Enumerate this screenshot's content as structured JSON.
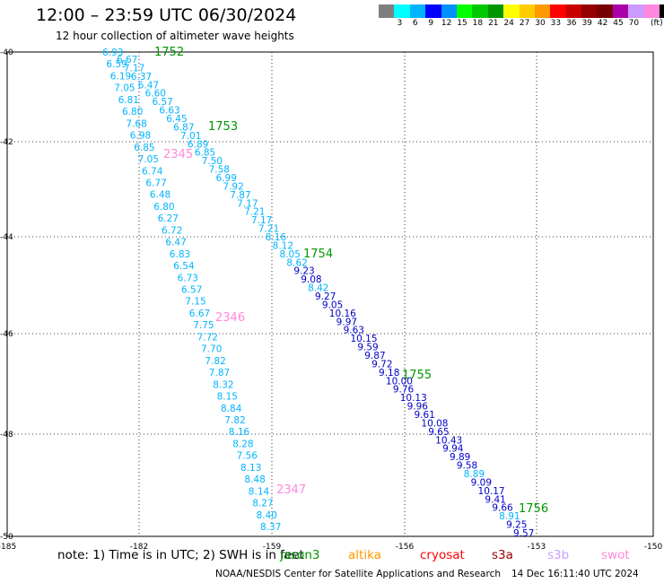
{
  "header": {
    "title": "12:00 – 23:59 UTC 06/30/2024",
    "subtitle": "12 hour collection of altimeter wave heights"
  },
  "colorbar": {
    "unit": "(ft)",
    "colors": [
      "#7f7f7f",
      "#00ffff",
      "#00b4ff",
      "#0000ff",
      "#0090ff",
      "#00ff00",
      "#00c800",
      "#009600",
      "#ffff00",
      "#ffcc00",
      "#ff9900",
      "#ff0000",
      "#c80000",
      "#960000",
      "#780000",
      "#aa00aa",
      "#cc99ff",
      "#ff88dd",
      "#000000"
    ],
    "labels": [
      "3",
      "6",
      "9",
      "12",
      "15",
      "18",
      "21",
      "24",
      "27",
      "30",
      "33",
      "36",
      "39",
      "42",
      "45",
      "70"
    ]
  },
  "axes": {
    "x_ticks": [
      "-185",
      "-182",
      "-159",
      "-156",
      "-153",
      "-150"
    ],
    "y_ticks": [
      "-40",
      "-42",
      "-44",
      "-46",
      "-48",
      "-50"
    ]
  },
  "tracks": [
    {
      "time_label": "1752",
      "time_label2": "1753",
      "time_label3": "1754",
      "time_label4": "1755",
      "time_label5": "1756",
      "values": [
        {
          "v": "6.67",
          "c": "#00b4ff"
        },
        {
          "v": "7.17",
          "c": "#00b4ff"
        },
        {
          "v": "6.37",
          "c": "#00b4ff"
        },
        {
          "v": "6.47",
          "c": "#00b4ff"
        },
        {
          "v": "6.60",
          "c": "#00b4ff"
        },
        {
          "v": "6.57",
          "c": "#00b4ff"
        },
        {
          "v": "6.63",
          "c": "#00b4ff"
        },
        {
          "v": "6.45",
          "c": "#00b4ff"
        },
        {
          "v": "6.87",
          "c": "#00b4ff"
        },
        {
          "v": "7.01",
          "c": "#00b4ff"
        },
        {
          "v": "6.89",
          "c": "#00b4ff"
        },
        {
          "v": "6.85",
          "c": "#00b4ff"
        },
        {
          "v": "7.50",
          "c": "#00b4ff"
        },
        {
          "v": "7.58",
          "c": "#00b4ff"
        },
        {
          "v": "6.99",
          "c": "#00b4ff"
        },
        {
          "v": "7.92",
          "c": "#00b4ff"
        },
        {
          "v": "7.87",
          "c": "#00b4ff"
        },
        {
          "v": "7.17",
          "c": "#00b4ff"
        },
        {
          "v": "7.21",
          "c": "#00b4ff"
        },
        {
          "v": "7.17",
          "c": "#00b4ff"
        },
        {
          "v": "7.21",
          "c": "#00b4ff"
        },
        {
          "v": "8.16",
          "c": "#00b4ff"
        },
        {
          "v": "8.12",
          "c": "#00b4ff"
        },
        {
          "v": "8.05",
          "c": "#00b4ff"
        },
        {
          "v": "8.62",
          "c": "#00b4ff"
        },
        {
          "v": "9.23",
          "c": "#0000c8"
        },
        {
          "v": "9.08",
          "c": "#0000c8"
        },
        {
          "v": "8.42",
          "c": "#00b4ff"
        },
        {
          "v": "9.27",
          "c": "#0000c8"
        },
        {
          "v": "9.05",
          "c": "#0000c8"
        },
        {
          "v": "10.16",
          "c": "#0000c8"
        },
        {
          "v": "9.97",
          "c": "#0000c8"
        },
        {
          "v": "9.63",
          "c": "#0000c8"
        },
        {
          "v": "10.15",
          "c": "#0000c8"
        },
        {
          "v": "9.59",
          "c": "#0000c8"
        },
        {
          "v": "9.87",
          "c": "#0000c8"
        },
        {
          "v": "9.72",
          "c": "#0000c8"
        },
        {
          "v": "9.18",
          "c": "#0000c8"
        },
        {
          "v": "10.00",
          "c": "#0000c8"
        },
        {
          "v": "9.76",
          "c": "#0000c8"
        },
        {
          "v": "10.13",
          "c": "#0000c8"
        },
        {
          "v": "9.96",
          "c": "#0000c8"
        },
        {
          "v": "9.61",
          "c": "#0000c8"
        },
        {
          "v": "10.08",
          "c": "#0000c8"
        },
        {
          "v": "9.65",
          "c": "#0000c8"
        },
        {
          "v": "10.43",
          "c": "#0000c8"
        },
        {
          "v": "9.94",
          "c": "#0000c8"
        },
        {
          "v": "9.89",
          "c": "#0000c8"
        },
        {
          "v": "9.58",
          "c": "#0000c8"
        },
        {
          "v": "8.89",
          "c": "#00b4ff"
        },
        {
          "v": "9.09",
          "c": "#0000c8"
        },
        {
          "v": "10.17",
          "c": "#0000c8"
        },
        {
          "v": "9.41",
          "c": "#0000c8"
        },
        {
          "v": "9.66",
          "c": "#0000c8"
        },
        {
          "v": "8.91",
          "c": "#00b4ff"
        },
        {
          "v": "9.25",
          "c": "#0000c8"
        },
        {
          "v": "9.57",
          "c": "#0000c8"
        }
      ]
    },
    {
      "time_label": "2345",
      "time_label2": "2346",
      "time_label3": "2347",
      "values": [
        {
          "v": "6.93",
          "c": "#00b4ff"
        },
        {
          "v": "6.59",
          "c": "#00b4ff"
        },
        {
          "v": "6.19",
          "c": "#00b4ff"
        },
        {
          "v": "7.05",
          "c": "#00b4ff"
        },
        {
          "v": "6.81",
          "c": "#00b4ff"
        },
        {
          "v": "6.80",
          "c": "#00b4ff"
        },
        {
          "v": "7.68",
          "c": "#00b4ff"
        },
        {
          "v": "6.98",
          "c": "#00b4ff"
        },
        {
          "v": "6.85",
          "c": "#00b4ff"
        },
        {
          "v": "7.05",
          "c": "#00b4ff"
        },
        {
          "v": "6.74",
          "c": "#00b4ff"
        },
        {
          "v": "6.77",
          "c": "#00b4ff"
        },
        {
          "v": "6.48",
          "c": "#00b4ff"
        },
        {
          "v": "6.80",
          "c": "#00b4ff"
        },
        {
          "v": "6.27",
          "c": "#00b4ff"
        },
        {
          "v": "6.72",
          "c": "#00b4ff"
        },
        {
          "v": "6.47",
          "c": "#00b4ff"
        },
        {
          "v": "6.83",
          "c": "#00b4ff"
        },
        {
          "v": "6.54",
          "c": "#00b4ff"
        },
        {
          "v": "6.73",
          "c": "#00b4ff"
        },
        {
          "v": "6.57",
          "c": "#00b4ff"
        },
        {
          "v": "7.15",
          "c": "#00b4ff"
        },
        {
          "v": "6.67",
          "c": "#00b4ff"
        },
        {
          "v": "7.75",
          "c": "#00b4ff"
        },
        {
          "v": "7.72",
          "c": "#00b4ff"
        },
        {
          "v": "7.70",
          "c": "#00b4ff"
        },
        {
          "v": "7.82",
          "c": "#00b4ff"
        },
        {
          "v": "7.87",
          "c": "#00b4ff"
        },
        {
          "v": "8.32",
          "c": "#00b4ff"
        },
        {
          "v": "8.15",
          "c": "#00b4ff"
        },
        {
          "v": "8.84",
          "c": "#00b4ff"
        },
        {
          "v": "7.82",
          "c": "#00b4ff"
        },
        {
          "v": "8.16",
          "c": "#00b4ff"
        },
        {
          "v": "8.28",
          "c": "#00b4ff"
        },
        {
          "v": "7.56",
          "c": "#00b4ff"
        },
        {
          "v": "8.13",
          "c": "#00b4ff"
        },
        {
          "v": "8.48",
          "c": "#00b4ff"
        },
        {
          "v": "8.14",
          "c": "#00b4ff"
        },
        {
          "v": "8.27",
          "c": "#00b4ff"
        },
        {
          "v": "8.40",
          "c": "#00b4ff"
        },
        {
          "v": "8.37",
          "c": "#00b4ff"
        }
      ]
    }
  ],
  "footer": {
    "note": "note:  1) Time is in UTC;  2) SWH is in feet",
    "satellites": [
      {
        "name": "jason3",
        "color": "#009600"
      },
      {
        "name": "altika",
        "color": "#ff9900"
      },
      {
        "name": "cryosat",
        "color": "#ff0000"
      },
      {
        "name": "s3a",
        "color": "#960000"
      },
      {
        "name": "s3b",
        "color": "#c8a0ff"
      },
      {
        "name": "swot",
        "color": "#ff88dd"
      }
    ],
    "credit": "NOAA/NESDIS Center for Satellite Applications and Research",
    "timestamp": "14 Dec 16:11:40 UTC 2024"
  }
}
